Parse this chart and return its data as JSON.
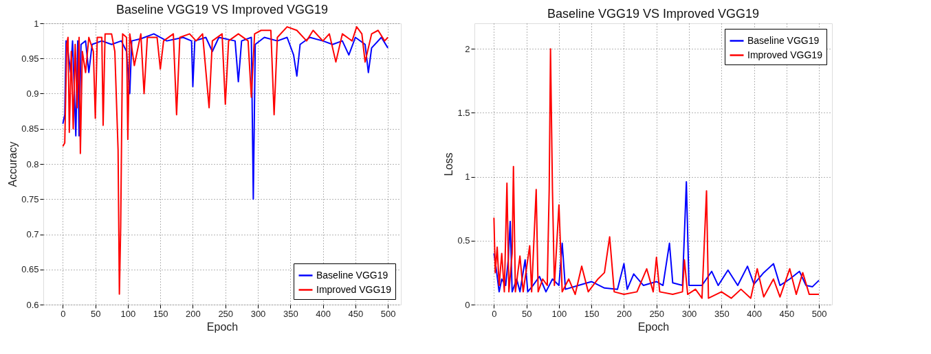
{
  "chart_data": [
    {
      "type": "line",
      "title": "Baseline VGG19 VS Improved VGG19",
      "xlabel": "Epoch",
      "ylabel": "Accuracy",
      "xlim": [
        -30,
        520
      ],
      "xticks": [
        0,
        50,
        100,
        150,
        200,
        250,
        300,
        350,
        400,
        450,
        500
      ],
      "ylim": [
        0.6,
        1
      ],
      "yticks": [
        0.6,
        0.65,
        0.7,
        0.75,
        0.8,
        0.85,
        0.9,
        0.95,
        1
      ],
      "grid": true,
      "legend": "bottom right",
      "line_style": "solid",
      "series": [
        {
          "name": "Baseline VGG19",
          "color": "#0000ff",
          "x": [
            0,
            3,
            5,
            8,
            12,
            15,
            20,
            23,
            25,
            28,
            35,
            40,
            45,
            60,
            75,
            90,
            98,
            103,
            106,
            120,
            140,
            160,
            185,
            198,
            200,
            203,
            220,
            230,
            240,
            265,
            270,
            275,
            290,
            293,
            296,
            310,
            330,
            345,
            355,
            360,
            365,
            380,
            400,
            415,
            430,
            440,
            450,
            465,
            470,
            475,
            490,
            500
          ],
          "values": [
            0.857,
            0.87,
            0.975,
            0.96,
            0.93,
            0.975,
            0.84,
            0.975,
            0.84,
            0.97,
            0.975,
            0.93,
            0.97,
            0.975,
            0.97,
            0.975,
            0.96,
            0.9,
            0.975,
            0.978,
            0.985,
            0.975,
            0.98,
            0.975,
            0.91,
            0.975,
            0.98,
            0.96,
            0.98,
            0.975,
            0.917,
            0.975,
            0.98,
            0.75,
            0.97,
            0.98,
            0.975,
            0.98,
            0.955,
            0.925,
            0.97,
            0.98,
            0.975,
            0.97,
            0.975,
            0.955,
            0.98,
            0.97,
            0.93,
            0.965,
            0.98,
            0.965
          ]
        },
        {
          "name": "Improved VGG19",
          "color": "#ff0000",
          "x": [
            0,
            3,
            6,
            8,
            10,
            13,
            16,
            19,
            22,
            25,
            27,
            30,
            35,
            40,
            47,
            50,
            53,
            60,
            62,
            65,
            75,
            80,
            85,
            87,
            89,
            92,
            98,
            100,
            103,
            110,
            120,
            125,
            130,
            145,
            150,
            155,
            170,
            175,
            180,
            195,
            205,
            215,
            225,
            230,
            245,
            250,
            255,
            270,
            285,
            290,
            295,
            305,
            320,
            325,
            330,
            345,
            360,
            375,
            385,
            400,
            410,
            420,
            430,
            445,
            452,
            460,
            465,
            475,
            485,
            495,
            500
          ],
          "values": [
            0.825,
            0.83,
            0.97,
            0.98,
            0.845,
            0.96,
            0.85,
            0.97,
            0.88,
            0.98,
            0.815,
            0.96,
            0.93,
            0.98,
            0.96,
            0.865,
            0.98,
            0.98,
            0.855,
            0.985,
            0.985,
            0.96,
            0.82,
            0.615,
            0.71,
            0.985,
            0.98,
            0.835,
            0.985,
            0.94,
            0.985,
            0.9,
            0.98,
            0.98,
            0.935,
            0.975,
            0.985,
            0.87,
            0.98,
            0.985,
            0.975,
            0.985,
            0.88,
            0.975,
            0.985,
            0.885,
            0.975,
            0.985,
            0.975,
            0.895,
            0.985,
            0.99,
            0.99,
            0.87,
            0.98,
            0.995,
            0.99,
            0.975,
            0.99,
            0.975,
            0.985,
            0.945,
            0.985,
            0.975,
            0.995,
            0.985,
            0.945,
            0.985,
            0.99,
            0.975,
            0.98
          ]
        }
      ]
    },
    {
      "type": "line",
      "title": "Baseline VGG19 VS Improved VGG19",
      "xlabel": "Epoch",
      "ylabel": "Loss",
      "xlim": [
        -30,
        520
      ],
      "xticks": [
        0,
        50,
        100,
        150,
        200,
        250,
        300,
        350,
        400,
        450,
        500
      ],
      "ylim": [
        0,
        2.2
      ],
      "yticks": [
        0,
        0.5,
        1,
        1.5,
        2
      ],
      "grid": true,
      "legend": "top right",
      "line_style": "solid",
      "series": [
        {
          "name": "Baseline VGG19",
          "color": "#0000ff",
          "x": [
            0,
            3,
            8,
            12,
            18,
            22,
            25,
            28,
            35,
            40,
            48,
            52,
            60,
            70,
            80,
            90,
            100,
            105,
            110,
            130,
            150,
            170,
            190,
            200,
            205,
            215,
            230,
            250,
            260,
            270,
            275,
            290,
            296,
            300,
            320,
            335,
            345,
            360,
            375,
            390,
            400,
            415,
            430,
            440,
            455,
            470,
            480,
            490,
            500
          ],
          "values": [
            0.4,
            0.3,
            0.1,
            0.2,
            0.15,
            0.35,
            0.65,
            0.1,
            0.2,
            0.1,
            0.35,
            0.1,
            0.15,
            0.22,
            0.1,
            0.2,
            0.15,
            0.48,
            0.12,
            0.15,
            0.18,
            0.13,
            0.12,
            0.32,
            0.12,
            0.24,
            0.15,
            0.18,
            0.15,
            0.48,
            0.17,
            0.15,
            0.96,
            0.15,
            0.15,
            0.26,
            0.15,
            0.27,
            0.15,
            0.3,
            0.16,
            0.25,
            0.32,
            0.15,
            0.2,
            0.26,
            0.15,
            0.14,
            0.19
          ]
        },
        {
          "name": "Improved VGG19",
          "color": "#ff0000",
          "x": [
            0,
            2,
            5,
            8,
            12,
            16,
            20,
            23,
            28,
            30,
            33,
            40,
            45,
            55,
            58,
            65,
            68,
            75,
            82,
            85,
            87,
            90,
            93,
            100,
            105,
            115,
            125,
            135,
            145,
            160,
            170,
            178,
            185,
            200,
            220,
            235,
            245,
            250,
            255,
            275,
            290,
            293,
            298,
            310,
            320,
            327,
            330,
            350,
            365,
            380,
            395,
            405,
            415,
            430,
            440,
            455,
            465,
            475,
            485,
            500
          ],
          "values": [
            0.68,
            0.25,
            0.45,
            0.15,
            0.4,
            0.1,
            0.95,
            0.1,
            0.4,
            1.08,
            0.1,
            0.38,
            0.1,
            0.46,
            0.1,
            0.9,
            0.1,
            0.2,
            0.15,
            0.9,
            2.0,
            0.9,
            0.15,
            0.78,
            0.1,
            0.2,
            0.08,
            0.3,
            0.1,
            0.2,
            0.25,
            0.53,
            0.1,
            0.08,
            0.1,
            0.28,
            0.1,
            0.37,
            0.1,
            0.08,
            0.1,
            0.35,
            0.08,
            0.12,
            0.05,
            0.89,
            0.05,
            0.1,
            0.05,
            0.12,
            0.05,
            0.28,
            0.06,
            0.2,
            0.06,
            0.28,
            0.08,
            0.25,
            0.08,
            0.08
          ]
        }
      ]
    }
  ]
}
